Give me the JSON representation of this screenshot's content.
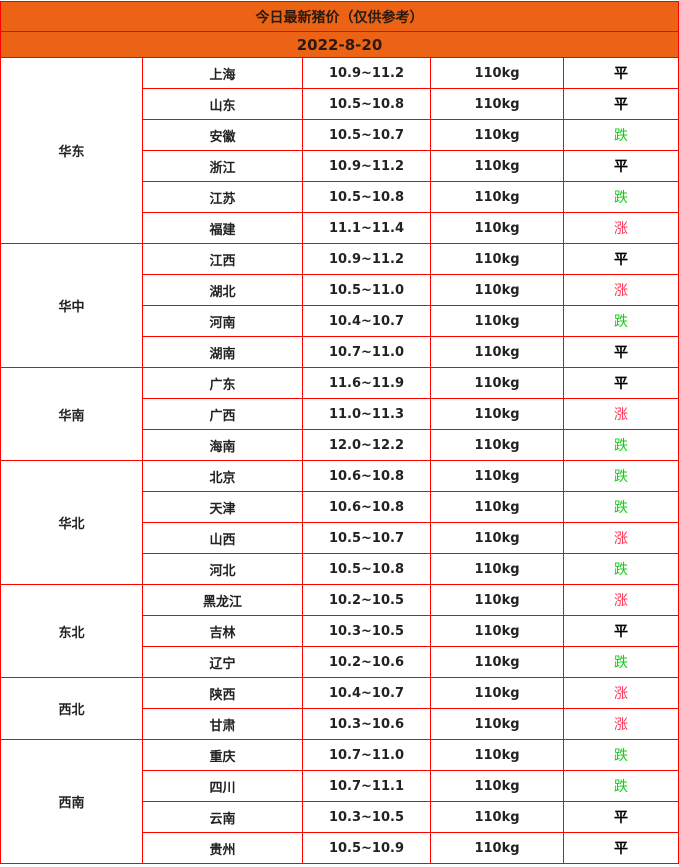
{
  "title": "今日最新猪价（仅供参考）",
  "date": "2022-8-20",
  "colors": {
    "header_bg": "#ec6316",
    "border": "#ff0000",
    "up": "#ff3355",
    "down": "#11cc11",
    "flat": "#000000"
  },
  "trend_styles": {
    "涨": "up",
    "跌": "down",
    "平": "flat"
  },
  "regions": [
    {
      "name": "华东",
      "rows": [
        {
          "province": "上海",
          "price": "10.9~11.2",
          "weight": "110kg",
          "trend": "平"
        },
        {
          "province": "山东",
          "price": "10.5~10.8",
          "weight": "110kg",
          "trend": "平"
        },
        {
          "province": "安徽",
          "price": "10.5~10.7",
          "weight": "110kg",
          "trend": "跌"
        },
        {
          "province": "浙江",
          "price": "10.9~11.2",
          "weight": "110kg",
          "trend": "平"
        },
        {
          "province": "江苏",
          "price": "10.5~10.8",
          "weight": "110kg",
          "trend": "跌"
        },
        {
          "province": "福建",
          "price": "11.1~11.4",
          "weight": "110kg",
          "trend": "涨"
        }
      ]
    },
    {
      "name": "华中",
      "rows": [
        {
          "province": "江西",
          "price": "10.9~11.2",
          "weight": "110kg",
          "trend": "平"
        },
        {
          "province": "湖北",
          "price": "10.5~11.0",
          "weight": "110kg",
          "trend": "涨"
        },
        {
          "province": "河南",
          "price": "10.4~10.7",
          "weight": "110kg",
          "trend": "跌"
        },
        {
          "province": "湖南",
          "price": "10.7~11.0",
          "weight": "110kg",
          "trend": "平"
        }
      ]
    },
    {
      "name": "华南",
      "rows": [
        {
          "province": "广东",
          "price": "11.6~11.9",
          "weight": "110kg",
          "trend": "平"
        },
        {
          "province": "广西",
          "price": "11.0~11.3",
          "weight": "110kg",
          "trend": "涨"
        },
        {
          "province": "海南",
          "price": "12.0~12.2",
          "weight": "110kg",
          "trend": "跌"
        }
      ]
    },
    {
      "name": "华北",
      "rows": [
        {
          "province": "北京",
          "price": "10.6~10.8",
          "weight": "110kg",
          "trend": "跌"
        },
        {
          "province": "天津",
          "price": "10.6~10.8",
          "weight": "110kg",
          "trend": "跌"
        },
        {
          "province": "山西",
          "price": "10.5~10.7",
          "weight": "110kg",
          "trend": "涨"
        },
        {
          "province": "河北",
          "price": "10.5~10.8",
          "weight": "110kg",
          "trend": "跌"
        }
      ]
    },
    {
      "name": "东北",
      "rows": [
        {
          "province": "黑龙江",
          "price": "10.2~10.5",
          "weight": "110kg",
          "trend": "涨"
        },
        {
          "province": "吉林",
          "price": "10.3~10.5",
          "weight": "110kg",
          "trend": "平"
        },
        {
          "province": "辽宁",
          "price": "10.2~10.6",
          "weight": "110kg",
          "trend": "跌"
        }
      ]
    },
    {
      "name": "西北",
      "rows": [
        {
          "province": "陕西",
          "price": "10.4~10.7",
          "weight": "110kg",
          "trend": "涨"
        },
        {
          "province": "甘肃",
          "price": "10.3~10.6",
          "weight": "110kg",
          "trend": "涨"
        }
      ]
    },
    {
      "name": "西南",
      "rows": [
        {
          "province": "重庆",
          "price": "10.7~11.0",
          "weight": "110kg",
          "trend": "跌"
        },
        {
          "province": "四川",
          "price": "10.7~11.1",
          "weight": "110kg",
          "trend": "跌"
        },
        {
          "province": "云南",
          "price": "10.3~10.5",
          "weight": "110kg",
          "trend": "平"
        },
        {
          "province": "贵州",
          "price": "10.5~10.9",
          "weight": "110kg",
          "trend": "平"
        }
      ]
    }
  ]
}
